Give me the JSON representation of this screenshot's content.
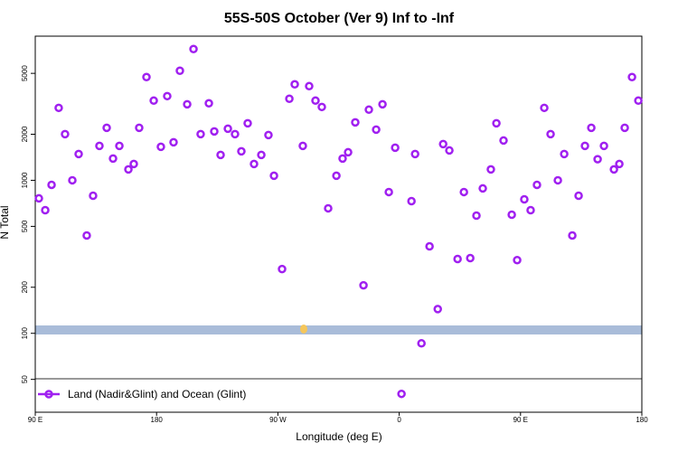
{
  "chart_data": {
    "type": "scatter",
    "title": "55S-50S October (Ver 9)   Inf to -Inf",
    "xlabel": "Longitude (deg E)",
    "ylabel": "N Total",
    "log_y": true,
    "legend": "lower left",
    "xlim": [
      90,
      540
    ],
    "ylim": [
      30.5,
      8750
    ],
    "xticks": [
      {
        "value": 90,
        "label": "90 E"
      },
      {
        "value": 180,
        "label": "180"
      },
      {
        "value": 270,
        "label": "90 W"
      },
      {
        "value": 360,
        "label": "0"
      },
      {
        "value": 450,
        "label": "90 E"
      },
      {
        "value": 540,
        "label": "180"
      }
    ],
    "yticks": [
      50,
      100,
      200,
      500,
      1000,
      2000,
      5000
    ],
    "series": [
      {
        "name": "Land (Nadir&Glint) and Ocean (Glint)",
        "color": "#a020f0",
        "x": [
          92.7,
          97.4,
          102.1,
          107.4,
          112.1,
          117.5,
          122.2,
          128.2,
          132.9,
          137.6,
          143.0,
          147.7,
          152.4,
          159.1,
          163.1,
          167.1,
          172.5,
          177.9,
          183.2,
          187.9,
          192.6,
          197.3,
          202.7,
          207.4,
          212.7,
          218.8,
          222.8,
          227.5,
          232.9,
          238.2,
          242.9,
          247.6,
          252.3,
          257.7,
          263.0,
          267.1,
          273.1,
          278.5,
          282.5,
          288.5,
          293.2,
          297.9,
          302.6,
          307.3,
          313.4,
          318.0,
          322.1,
          327.4,
          333.5,
          337.5,
          342.9,
          347.6,
          352.3,
          357.0,
          361.7,
          369.1,
          371.8,
          376.5,
          382.5,
          388.6,
          392.6,
          397.2,
          403.3,
          408.0,
          412.7,
          417.3,
          422.0,
          428.0,
          432.1,
          437.4,
          443.5,
          447.5,
          452.8,
          457.5,
          462.2,
          467.6,
          472.3,
          477.7,
          482.4,
          488.4,
          493.1,
          497.8,
          502.5,
          507.2,
          511.9,
          519.3,
          523.3,
          527.3,
          532.7,
          537.4
        ],
        "values": [
          762,
          638,
          934,
          2974,
          2004,
          1000,
          1485,
          436,
          793,
          1678,
          2204,
          1387,
          1678,
          1178,
          1278,
          2204,
          4728,
          3317,
          1655,
          3550,
          1773,
          5200,
          3140,
          7210,
          2004,
          3185,
          2088,
          1465,
          2174,
          2004,
          1546,
          2359,
          1278,
          1465,
          1976,
          1071,
          263,
          3410,
          4238,
          1678,
          4124,
          3317,
          3015,
          656,
          1071,
          1387,
          1525,
          2392,
          206,
          2895,
          2144,
          3140,
          838,
          1633,
          40.2,
          731,
          1485,
          86,
          370,
          144,
          1725,
          1567,
          306,
          838,
          310,
          588,
          885,
          1178,
          2359,
          1820,
          596,
          301,
          751,
          638,
          934,
          2974,
          2004,
          1000,
          1485,
          436,
          793,
          1678,
          2204,
          1374,
          1678,
          1178,
          1278,
          2204,
          4728,
          3317
        ]
      }
    ]
  }
}
